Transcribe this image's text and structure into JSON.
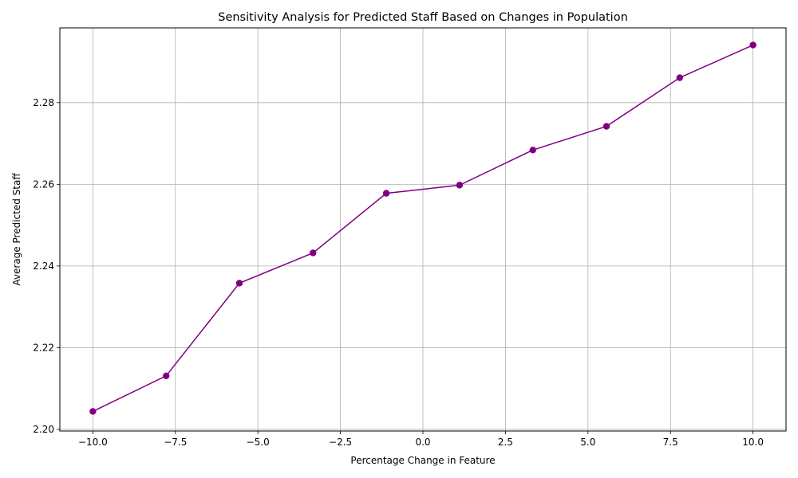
{
  "chart_data": {
    "type": "line",
    "title": "Sensitivity Analysis for Predicted Staff Based on Changes in Population",
    "xlabel": "Percentage Change in Feature",
    "ylabel": "Average Predicted Staff",
    "xlim": [
      -11.0,
      11.0
    ],
    "ylim": [
      2.1996,
      2.2983
    ],
    "x_ticks": [
      -10.0,
      -7.5,
      -5.0,
      -2.5,
      0.0,
      2.5,
      5.0,
      7.5,
      10.0
    ],
    "x_tick_labels": [
      "−10.0",
      "−7.5",
      "−5.0",
      "−2.5",
      "0.0",
      "2.5",
      "5.0",
      "7.5",
      "10.0"
    ],
    "y_ticks": [
      2.2,
      2.22,
      2.24,
      2.26,
      2.28
    ],
    "y_tick_labels": [
      "2.20",
      "2.22",
      "2.24",
      "2.26",
      "2.28"
    ],
    "grid": true,
    "series": [
      {
        "color": "#800080",
        "marker": "circle",
        "x": [
          -10.0,
          -7.78,
          -5.56,
          -3.33,
          -1.11,
          1.11,
          3.33,
          5.56,
          7.78,
          10.0
        ],
        "y": [
          2.2044,
          2.2131,
          2.2358,
          2.2432,
          2.2578,
          2.2598,
          2.2684,
          2.2742,
          2.2861,
          2.2941
        ]
      }
    ]
  }
}
